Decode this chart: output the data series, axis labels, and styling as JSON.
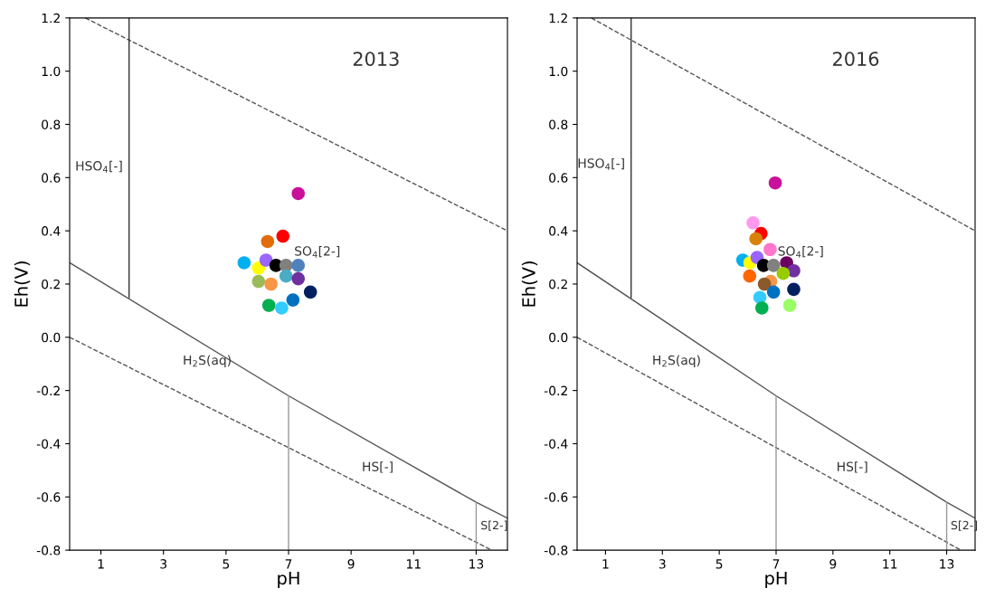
{
  "chart_data": [
    {
      "type": "scatter",
      "title": "2013",
      "xlabel": "pH",
      "ylabel": "Eh(V)",
      "xlim": [
        0,
        14
      ],
      "ylim": [
        -0.8,
        1.2
      ],
      "xticks": [
        1,
        3,
        5,
        7,
        9,
        11,
        13
      ],
      "yticks": [
        {
          "value": -0.8,
          "label": "-0.8"
        },
        {
          "value": -0.6,
          "label": "-0.6"
        },
        {
          "value": -0.4,
          "label": "-0.4"
        },
        {
          "value": -0.2,
          "label": "-0.2"
        },
        {
          "value": 0,
          "label": "0.0"
        },
        {
          "value": 0.2,
          "label": "0.2"
        },
        {
          "value": 0.4,
          "label": "0.4"
        },
        {
          "value": 0.6,
          "label": "0.6"
        },
        {
          "value": 0.8,
          "label": "0.8"
        },
        {
          "value": 1.0,
          "label": "1.0"
        },
        {
          "value": 1.2,
          "label": "1.2"
        }
      ],
      "grid": false,
      "series": [
        {
          "type": "line",
          "color": "#555555",
          "line_style": "dashed",
          "x": [
            0.5,
            14
          ],
          "values": [
            1.2,
            0.4
          ]
        },
        {
          "type": "line",
          "color": "#555555",
          "line_style": "dashed",
          "x": [
            0,
            13.5
          ],
          "values": [
            0,
            -0.8
          ]
        },
        {
          "type": "line",
          "color": "#555555",
          "line_style": "solid",
          "x": [
            0,
            7,
            13,
            14
          ],
          "values": [
            0.28,
            -0.22,
            -0.62,
            -0.68
          ]
        },
        {
          "type": "line",
          "color": "#333333",
          "line_style": "solid",
          "x": [
            1.9,
            1.9
          ],
          "values": [
            0.15,
            1.2
          ]
        },
        {
          "type": "line",
          "color": "#999999",
          "line_style": "solid",
          "x": [
            7,
            7
          ],
          "values": [
            -0.22,
            -0.8
          ]
        },
        {
          "type": "line",
          "color": "#999999",
          "line_style": "solid",
          "x": [
            13,
            13
          ],
          "values": [
            -0.62,
            -0.8
          ]
        },
        {
          "marker": "circle",
          "x": [
            7.31,
            6.82,
            6.33,
            5.58,
            6.04,
            6.28,
            6.6,
            6.92,
            7.31,
            6.04,
            6.44,
            6.92,
            7.31,
            7.7,
            7.14,
            6.37,
            6.78
          ],
          "values": [
            0.54,
            0.38,
            0.36,
            0.28,
            0.26,
            0.29,
            0.27,
            0.27,
            0.27,
            0.21,
            0.2,
            0.23,
            0.22,
            0.17,
            0.14,
            0.12,
            0.11
          ],
          "colors": [
            "#c8109a",
            "#ff0000",
            "#e36c0a",
            "#00b0f0",
            "#ffff00",
            "#9966ff",
            "#000000",
            "#808080",
            "#4f81bd",
            "#9bbb59",
            "#f79646",
            "#4bacc6",
            "#7030a0",
            "#002060",
            "#0070c0",
            "#00b050",
            "#33ccff"
          ]
        }
      ],
      "annotations": [
        "HSO$_{4}$[-]",
        "SO$_{4}$[2-]",
        "H$_{2}$S(aq)",
        "HS[-]",
        "S[2-]"
      ]
    },
    {
      "type": "scatter",
      "title": "2016",
      "xlabel": "pH",
      "ylabel": "Eh(V)",
      "xlim": [
        0,
        14
      ],
      "ylim": [
        -0.8,
        1.2
      ],
      "xticks": [
        1,
        3,
        5,
        7,
        9,
        11,
        13
      ],
      "yticks": [
        {
          "value": -0.8,
          "label": "-0.8"
        },
        {
          "value": -0.6,
          "label": "-0.6"
        },
        {
          "value": -0.4,
          "label": "-0.4"
        },
        {
          "value": -0.2,
          "label": "-0.2"
        },
        {
          "value": 0,
          "label": "0.0"
        },
        {
          "value": 0.2,
          "label": "0.2"
        },
        {
          "value": 0.4,
          "label": "0.4"
        },
        {
          "value": 0.6,
          "label": "0.6"
        },
        {
          "value": 0.8,
          "label": "0.8"
        },
        {
          "value": 1.0,
          "label": "1.0"
        },
        {
          "value": 1.2,
          "label": "1.2"
        }
      ],
      "grid": false,
      "series": [
        {
          "type": "line",
          "color": "#555555",
          "line_style": "dashed",
          "x": [
            0.5,
            14
          ],
          "values": [
            1.2,
            0.4
          ]
        },
        {
          "type": "line",
          "color": "#555555",
          "line_style": "dashed",
          "x": [
            0,
            13.5
          ],
          "values": [
            0,
            -0.8
          ]
        },
        {
          "type": "line",
          "color": "#555555",
          "line_style": "solid",
          "x": [
            0,
            7,
            13,
            14
          ],
          "values": [
            0.28,
            -0.22,
            -0.62,
            -0.68
          ]
        },
        {
          "type": "line",
          "color": "#333333",
          "line_style": "solid",
          "x": [
            1.9,
            1.9
          ],
          "values": [
            0.15,
            1.2
          ]
        },
        {
          "type": "line",
          "color": "#999999",
          "line_style": "solid",
          "x": [
            7,
            7
          ],
          "values": [
            -0.22,
            -0.8
          ]
        },
        {
          "type": "line",
          "color": "#999999",
          "line_style": "solid",
          "x": [
            13,
            13
          ],
          "values": [
            -0.62,
            -0.8
          ]
        },
        {
          "marker": "circle",
          "x": [
            6.97,
            6.19,
            6.47,
            6.29,
            6.79,
            5.83,
            6.08,
            6.33,
            6.56,
            6.91,
            7.37,
            7.62,
            7.25,
            6.07,
            6.81,
            6.59,
            6.91,
            7.62,
            6.43,
            6.5,
            7.48
          ],
          "values": [
            0.58,
            0.43,
            0.39,
            0.37,
            0.33,
            0.29,
            0.28,
            0.3,
            0.27,
            0.27,
            0.28,
            0.25,
            0.24,
            0.23,
            0.21,
            0.2,
            0.17,
            0.18,
            0.15,
            0.11,
            0.12
          ],
          "colors": [
            "#c8109a",
            "#ff99ee",
            "#ff0000",
            "#d9820a",
            "#ff77cc",
            "#00b0f0",
            "#ffff00",
            "#9966ff",
            "#000000",
            "#808080",
            "#6a0060",
            "#7030a0",
            "#99cc00",
            "#ff6600",
            "#f79646",
            "#8b5a2b",
            "#0070c0",
            "#002060",
            "#33ccff",
            "#00b050",
            "#99ff66"
          ]
        }
      ],
      "annotations": [
        "HSO$_{4}$[-]",
        "SO$_{4}$[2-]",
        "H$_{2}$S(aq)",
        "HS[-]",
        "S[2-]"
      ]
    }
  ]
}
